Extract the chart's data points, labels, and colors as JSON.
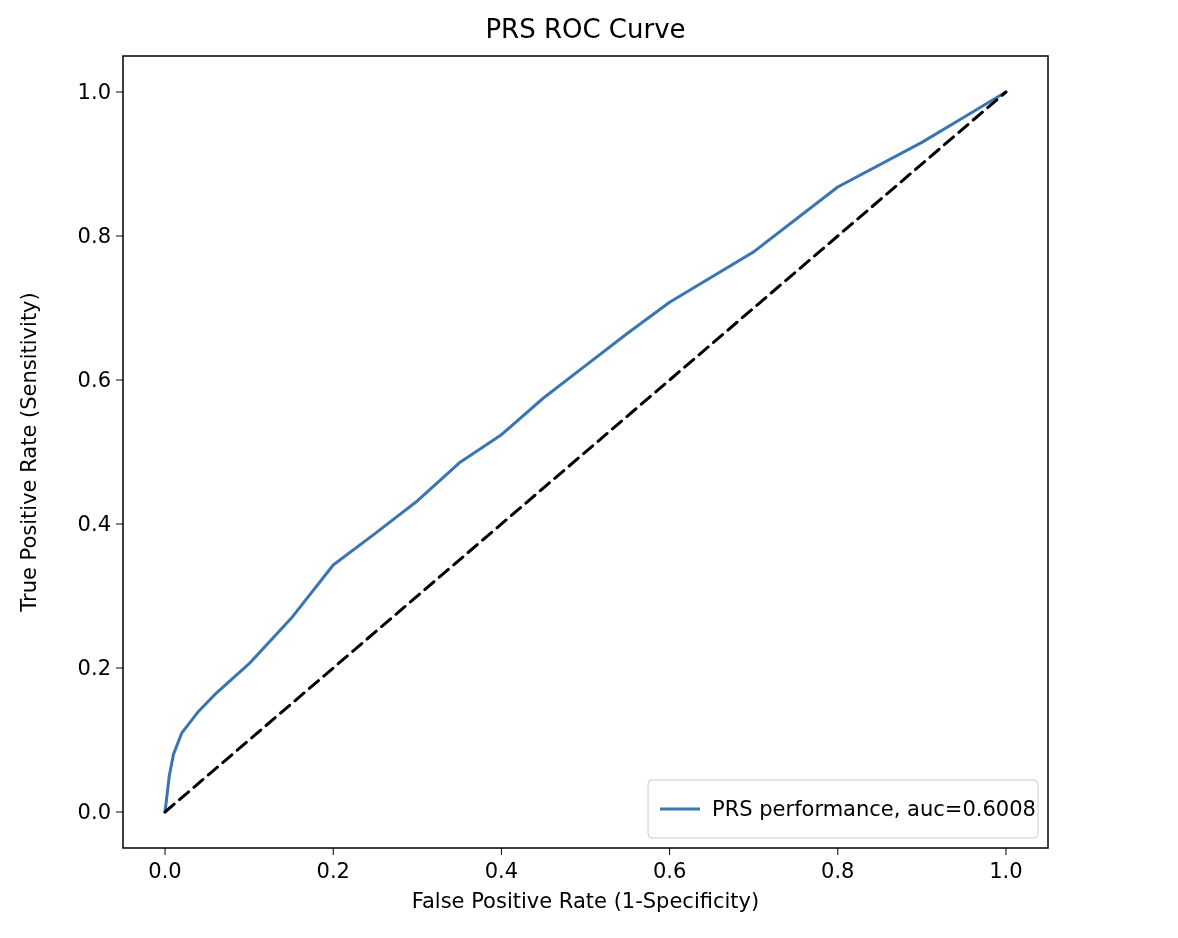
{
  "chart_data": {
    "type": "line",
    "title": "PRS ROC Curve",
    "xlabel": "False Positive Rate (1-Specificity)",
    "ylabel": "True Positive Rate (Sensitivity)",
    "xlim": [
      -0.05,
      1.05
    ],
    "ylim": [
      -0.05,
      1.05
    ],
    "xticks": [
      {
        "value": 0,
        "label": "0.0"
      },
      {
        "value": 0.2,
        "label": "0.2"
      },
      {
        "value": 0.4,
        "label": "0.4"
      },
      {
        "value": 0.6,
        "label": "0.6"
      },
      {
        "value": 0.8,
        "label": "0.8"
      },
      {
        "value": 1,
        "label": "1.0"
      }
    ],
    "yticks": [
      {
        "value": 0,
        "label": "0.0"
      },
      {
        "value": 0.2,
        "label": "0.2"
      },
      {
        "value": 0.4,
        "label": "0.4"
      },
      {
        "value": 0.6,
        "label": "0.6"
      },
      {
        "value": 0.8,
        "label": "0.8"
      },
      {
        "value": 1,
        "label": "1.0"
      }
    ],
    "grid": false,
    "legend": "bottom right",
    "marker": "none",
    "series": [
      {
        "name": "PRS performance, auc=0.6008",
        "color": "#3a75b0",
        "line_style": "solid",
        "x": [
          0,
          0.005,
          0.01,
          0.02,
          0.04,
          0.06,
          0.1,
          0.15,
          0.2,
          0.25,
          0.3,
          0.35,
          0.4,
          0.45,
          0.5,
          0.55,
          0.6,
          0.7,
          0.8,
          0.9,
          0.95,
          1
        ],
        "values": [
          0,
          0.05,
          0.08,
          0.11,
          0.14,
          0.164,
          0.206,
          0.269,
          0.343,
          0.387,
          0.432,
          0.485,
          0.524,
          0.575,
          0.62,
          0.665,
          0.708,
          0.778,
          0.868,
          0.93,
          0.965,
          1
        ]
      },
      {
        "color": "#000000",
        "line_style": "dashed",
        "x": [
          0,
          1
        ],
        "values": [
          0,
          1
        ]
      }
    ]
  }
}
